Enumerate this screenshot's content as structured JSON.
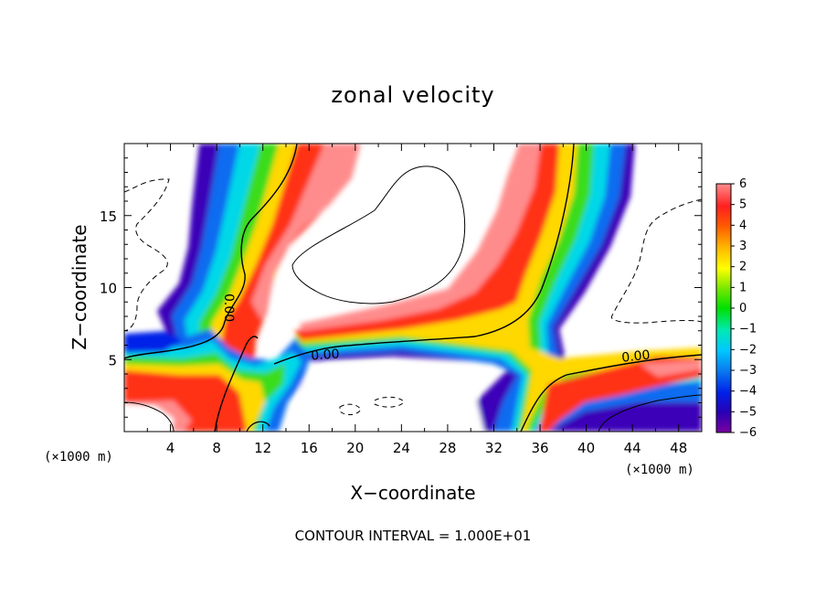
{
  "chart_data": {
    "type": "heatmap",
    "title": "zonal velocity",
    "xlabel": "X−coordinate",
    "ylabel": "Z−coordinate",
    "x_unit_left": "(×1000 m)",
    "x_unit_right": "(×1000 m)",
    "xlim": [
      0,
      50
    ],
    "ylim": [
      0,
      20
    ],
    "x_ticks": [
      4,
      8,
      12,
      16,
      20,
      24,
      28,
      32,
      36,
      40,
      44,
      48
    ],
    "y_ticks": [
      5,
      10,
      15
    ],
    "colorbar": {
      "min": -6,
      "max": 6,
      "ticks": [
        6,
        5,
        4,
        3,
        2,
        1,
        0,
        -1,
        -2,
        -3,
        -4,
        -5,
        -6
      ],
      "tick_labels": [
        "6",
        "5",
        "4",
        "3",
        "2",
        "1",
        "0",
        "−1",
        "−2",
        "−3",
        "−4",
        "−5",
        "−6"
      ],
      "colors": [
        "#7a00a0",
        "#2a00b5",
        "#0020e8",
        "#0a7cf0",
        "#00c8ff",
        "#00e8b4",
        "#00e000",
        "#7ae800",
        "#ffff00",
        "#ffb000",
        "#ff5a00",
        "#ff2020",
        "#ff8c8c"
      ]
    },
    "contour_labels": [
      {
        "text": "0.00",
        "x": 9.0,
        "z": 8.6,
        "angle": 90
      },
      {
        "text": "0.00",
        "x": 17.4,
        "z": 5.3,
        "angle": -4
      },
      {
        "text": "0.00",
        "x": 44.3,
        "z": 5.2,
        "angle": -6
      }
    ],
    "footer": "CONTOUR INTERVAL = 1.000E+01"
  }
}
